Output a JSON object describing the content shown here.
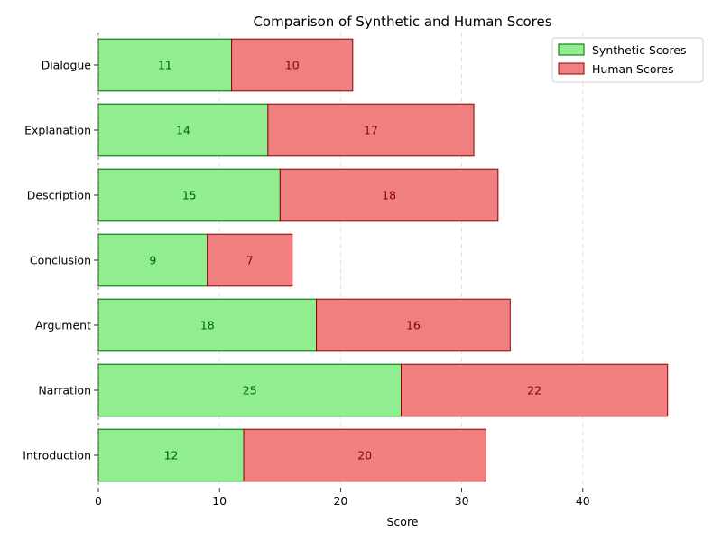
{
  "chart_data": {
    "type": "bar",
    "orientation": "horizontal",
    "stacked": true,
    "title": "Comparison of Synthetic and Human Scores",
    "xlabel": "Score",
    "ylabel": "",
    "categories": [
      "Introduction",
      "Narration",
      "Argument",
      "Conclusion",
      "Description",
      "Explanation",
      "Dialogue"
    ],
    "series": [
      {
        "name": "Synthetic Scores",
        "values": [
          12,
          25,
          18,
          9,
          15,
          14,
          11
        ],
        "color": "#90ee90",
        "edge_color": "#006400",
        "label_color": "#006400"
      },
      {
        "name": "Human Scores",
        "values": [
          20,
          22,
          16,
          7,
          18,
          17,
          10
        ],
        "color": "#f08080",
        "edge_color": "#8b0000",
        "label_color": "#8b0000"
      }
    ],
    "xlim": [
      0,
      50
    ],
    "xticks": [
      "0",
      "10",
      "20",
      "30",
      "40"
    ],
    "grid": "x-dashed",
    "legend_position": "top-right"
  }
}
